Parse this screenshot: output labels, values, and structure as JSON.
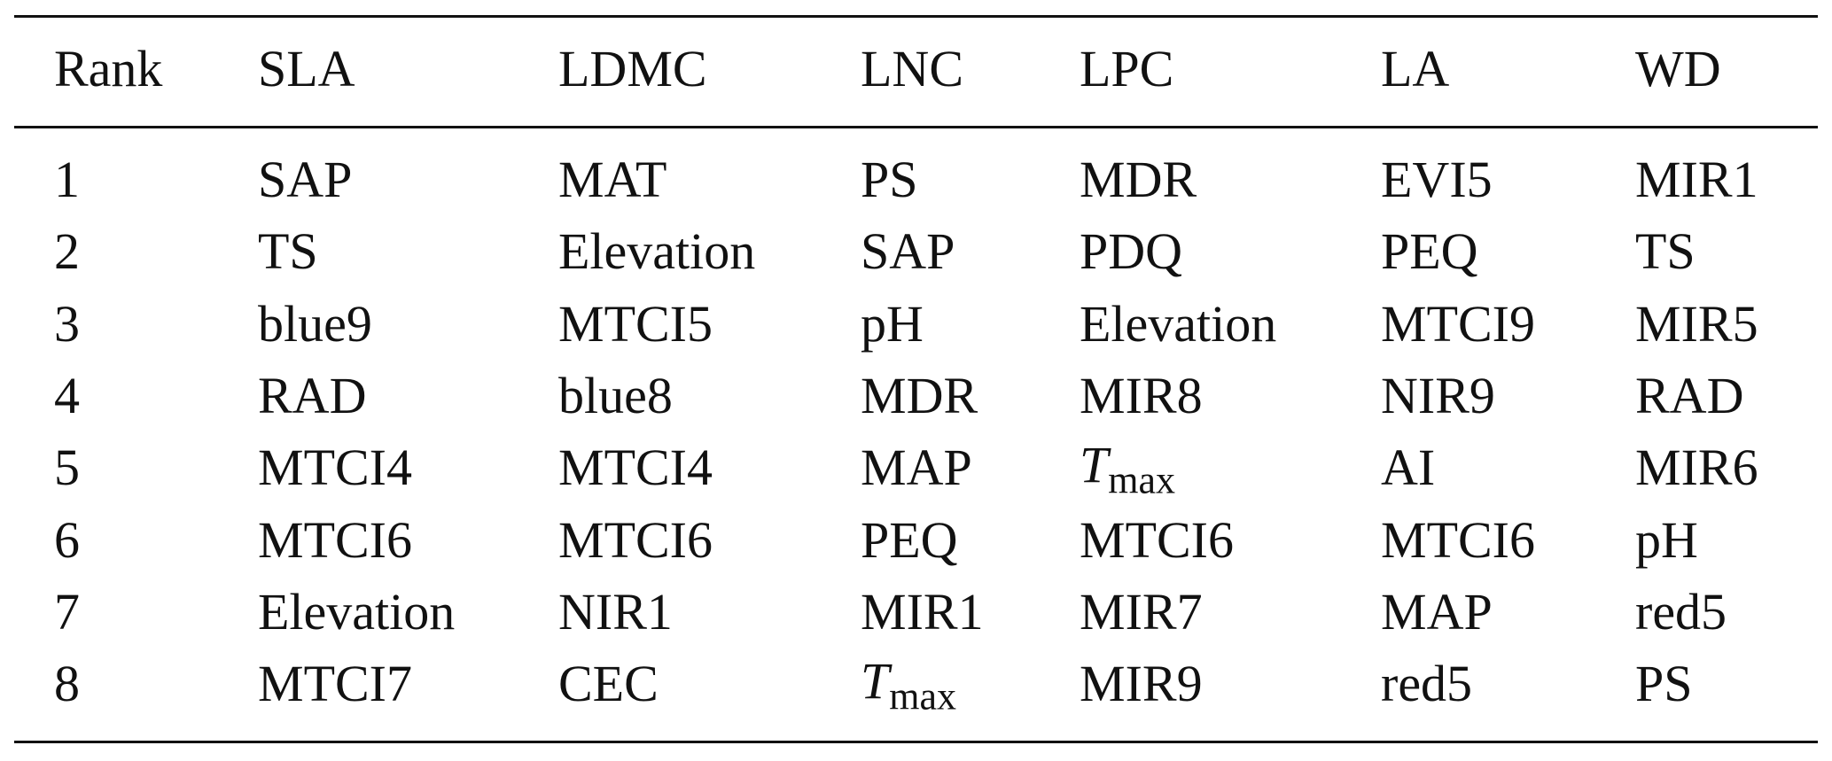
{
  "table": {
    "header": [
      "Rank",
      "SLA",
      "LDMC",
      "LNC",
      "LPC",
      "LA",
      "WD"
    ],
    "rows": [
      [
        "1",
        "SAP",
        "MAT",
        "PS",
        "MDR",
        "EVI5",
        "MIR1"
      ],
      [
        "2",
        "TS",
        "Elevation",
        "SAP",
        "PDQ",
        "PEQ",
        "TS"
      ],
      [
        "3",
        "blue9",
        "MTCI5",
        "pH",
        "Elevation",
        "MTCI9",
        "MIR5"
      ],
      [
        "4",
        "RAD",
        "blue8",
        "MDR",
        "MIR8",
        "NIR9",
        "RAD"
      ],
      [
        "5",
        "MTCI4",
        "MTCI4",
        "MAP",
        {
          "italic": "T",
          "sub": "max"
        },
        "AI",
        "MIR6"
      ],
      [
        "6",
        "MTCI6",
        "MTCI6",
        "PEQ",
        "MTCI6",
        "MTCI6",
        "pH"
      ],
      [
        "7",
        "Elevation",
        "NIR1",
        "MIR1",
        "MIR7",
        "MAP",
        "red5"
      ],
      [
        "8",
        "MTCI7",
        "CEC",
        {
          "italic": "T",
          "sub": "max"
        },
        "MIR9",
        "red5",
        "PS"
      ]
    ]
  }
}
